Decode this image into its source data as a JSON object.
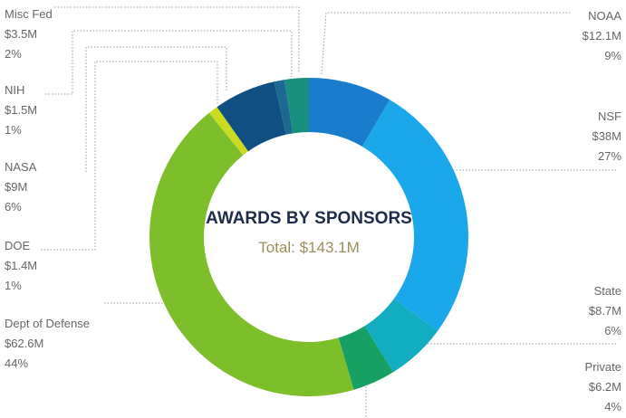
{
  "chart_data": {
    "type": "donut",
    "title": "AWARDS BY SPONSORS",
    "subtitle": "Total: $143.1M",
    "categories": [
      "NOAA",
      "NSF",
      "State",
      "Private",
      "Dept of Defense",
      "DOE",
      "NASA",
      "NIH",
      "Misc Fed"
    ],
    "values": [
      12.1,
      38,
      8.7,
      6.2,
      62.6,
      1.4,
      9,
      1.5,
      3.5
    ],
    "value_labels": [
      "$12.1M",
      "$38M",
      "$8.7M",
      "$6.2M",
      "$62.6M",
      "$1.4M",
      "$9M",
      "$1.5M",
      "$3.5M"
    ],
    "percents": [
      9,
      27,
      6,
      4,
      44,
      1,
      6,
      1,
      2
    ],
    "percent_labels": [
      "9%",
      "27%",
      "6%",
      "4%",
      "44%",
      "1%",
      "6%",
      "1%",
      "2%"
    ],
    "colors": [
      "#1a7ccc",
      "#1ba8ea",
      "#12adc0",
      "#16a063",
      "#7dbe2b",
      "#cadc1f",
      "#0f4f82",
      "#1c6a92",
      "#188f7f"
    ]
  }
}
